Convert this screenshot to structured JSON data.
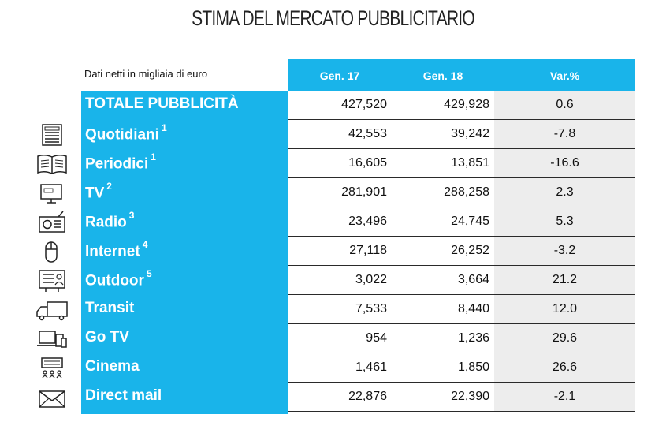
{
  "title": "STIMA DEL MERCATO PUBBLICITARIO",
  "note": "Dati netti in migliaia di euro",
  "columns": [
    "Gen. 17",
    "Gen. 18",
    "Var.%"
  ],
  "rows": [
    {
      "label": "TOTALE PUBBLICITÀ",
      "sup": "",
      "gen17": "427,520",
      "gen18": "429,928",
      "var": "0.6",
      "icon": "none"
    },
    {
      "label": "Quotidiani",
      "sup": "1",
      "gen17": "42,553",
      "gen18": "39,242",
      "var": "-7.8",
      "icon": "newspaper-icon"
    },
    {
      "label": "Periodici",
      "sup": "1",
      "gen17": "16,605",
      "gen18": "13,851",
      "var": "-16.6",
      "icon": "magazine-icon"
    },
    {
      "label": "TV",
      "sup": "2",
      "gen17": "281,901",
      "gen18": "288,258",
      "var": "2.3",
      "icon": "tv-icon"
    },
    {
      "label": "Radio",
      "sup": "3",
      "gen17": "23,496",
      "gen18": "24,745",
      "var": "5.3",
      "icon": "radio-icon"
    },
    {
      "label": "Internet",
      "sup": "4",
      "gen17": "27,118",
      "gen18": "26,252",
      "var": "-3.2",
      "icon": "mouse-icon"
    },
    {
      "label": "Outdoor",
      "sup": "5",
      "gen17": "3,022",
      "gen18": "3,664",
      "var": "21.2",
      "icon": "billboard-icon"
    },
    {
      "label": "Transit",
      "sup": "",
      "gen17": "7,533",
      "gen18": "8,440",
      "var": "12.0",
      "icon": "truck-icon"
    },
    {
      "label": "Go TV",
      "sup": "",
      "gen17": "954",
      "gen18": "1,236",
      "var": "29.6",
      "icon": "devices-icon"
    },
    {
      "label": "Cinema",
      "sup": "",
      "gen17": "1,461",
      "gen18": "1,850",
      "var": "26.6",
      "icon": "cinema-icon"
    },
    {
      "label": "Direct mail",
      "sup": "",
      "gen17": "22,876",
      "gen18": "22,390",
      "var": "-2.1",
      "icon": "envelope-icon"
    }
  ]
}
